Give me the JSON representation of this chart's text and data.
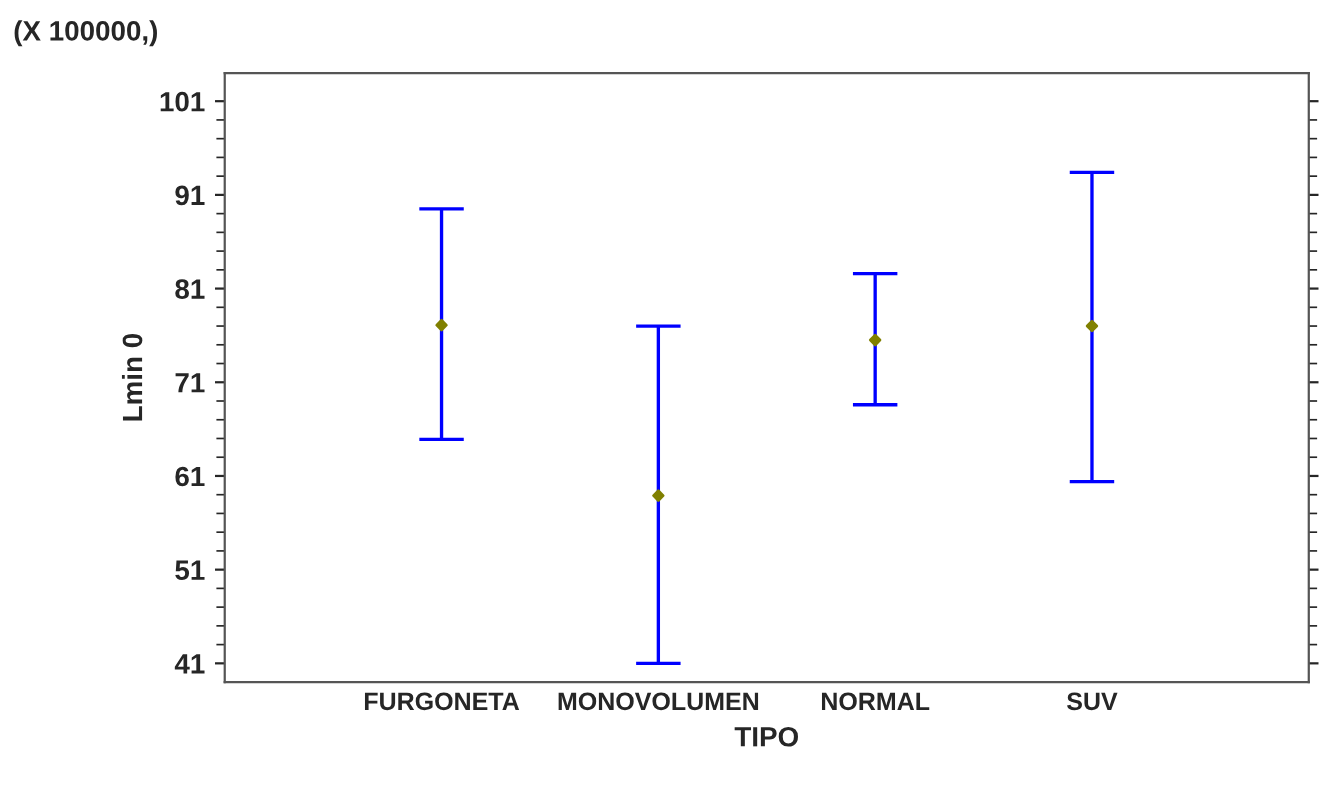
{
  "chart_data": {
    "type": "scatter",
    "xlabel": "TIPO",
    "ylabel": "Lmin 0",
    "annotations": [
      "(X 100000,)"
    ],
    "categories": [
      "FURGONETA",
      "MONOVOLUMEN",
      "NORMAL",
      "SUV"
    ],
    "series": [
      {
        "color": "#808000",
        "values": [
          77.1,
          58.9,
          75.5,
          77
        ],
        "errors": [
          [
            64.9,
            89.5
          ],
          [
            41,
            77
          ],
          [
            68.6,
            82.6
          ],
          [
            60.4,
            93.4
          ]
        ]
      }
    ],
    "ylim": [
      39,
      104
    ],
    "yticks": [
      41,
      51,
      61,
      71,
      81,
      91,
      101
    ],
    "grid": false,
    "marker": "diamond"
  }
}
